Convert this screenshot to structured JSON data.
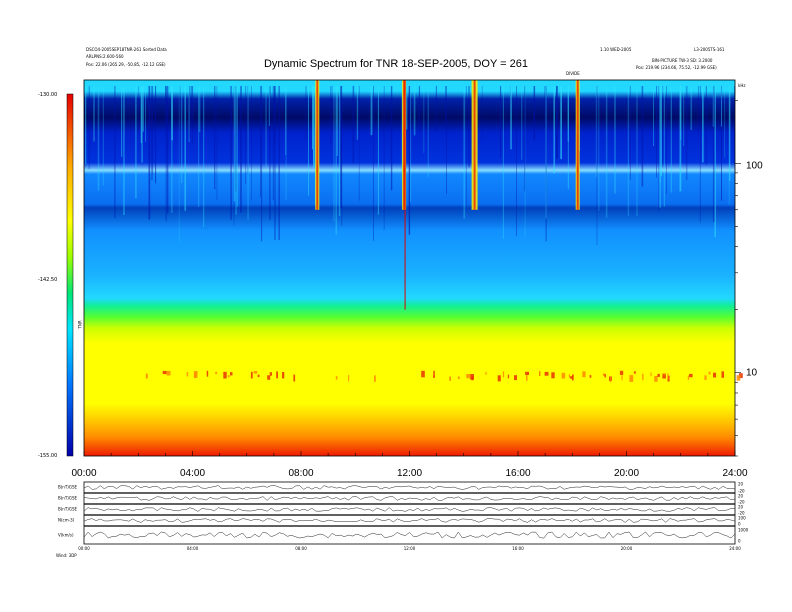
{
  "header": {
    "left_line1": "DSCO4-2005SEP18TNR-261 Sorted Data",
    "left_line2": "ARLPNS:2.600-560",
    "left_pos_label": "Pos:",
    "left_pos_value": "22.06 (265.29, -50.85, -12.12 GSE)",
    "right_line1": "1.10 WED-2005",
    "right_line2": "L3-2005TS-161",
    "right_line3": "BIN-PICTURE TW-3 SD: 3.2000",
    "right_pos_label": "Pos:",
    "right_pos_value": "219.96 (234.66, 75.52, -12.99 GSE)",
    "marker_label": "DIVIDE"
  },
  "chart_data": {
    "type": "heatmap",
    "title": "Dynamic Spectrum for TNR 18-SEP-2005, DOY = 261",
    "x_ticks": [
      "00:00",
      "04:00",
      "08:00",
      "12:00",
      "16:00",
      "20:00",
      "24:00"
    ],
    "x_range_hours": [
      0,
      24
    ],
    "y_scale": "log",
    "y_range_khz": [
      4,
      250
    ],
    "y_tick_labels": [
      "100",
      "10"
    ],
    "y_tick_values": [
      100,
      10
    ],
    "y_unit": "kHz",
    "colorbar": {
      "ticks": [
        "-130.00",
        "-142.50",
        "-155.00"
      ],
      "tick_values": [
        -130,
        -142.5,
        -155
      ],
      "range": [
        -155,
        -130
      ],
      "label": "TNR",
      "colors": [
        "#e60000",
        "#ff7f00",
        "#ffff00",
        "#9cff00",
        "#00ff55",
        "#00e5ff",
        "#0099ff",
        "#0033cc",
        "#000033"
      ]
    },
    "events": [
      {
        "name": "burst-1",
        "hour": 8.6
      },
      {
        "name": "burst-2",
        "hour": 11.8
      },
      {
        "name": "burst-3",
        "hour": 14.4
      },
      {
        "name": "burst-4",
        "hour": 18.2
      }
    ],
    "panels": [
      {
        "label": "B(nT)GSE",
        "ticks": [
          "-20",
          "20"
        ]
      },
      {
        "label": "B(nT)GSE",
        "ticks": [
          "-20",
          "20"
        ]
      },
      {
        "label": "B(nT)GSE",
        "ticks": [
          "-20",
          "20"
        ]
      },
      {
        "label": "N(cm-3)",
        "ticks": [
          "0",
          "100"
        ]
      },
      {
        "label": "V(km/s)",
        "ticks": [
          "0",
          "1000"
        ]
      }
    ],
    "panel_x_ticks": [
      "00:00",
      "04:00",
      "08:00",
      "12:00",
      "16:00",
      "20:00",
      "24:00"
    ],
    "footer_label": "Wind: 3DP"
  }
}
